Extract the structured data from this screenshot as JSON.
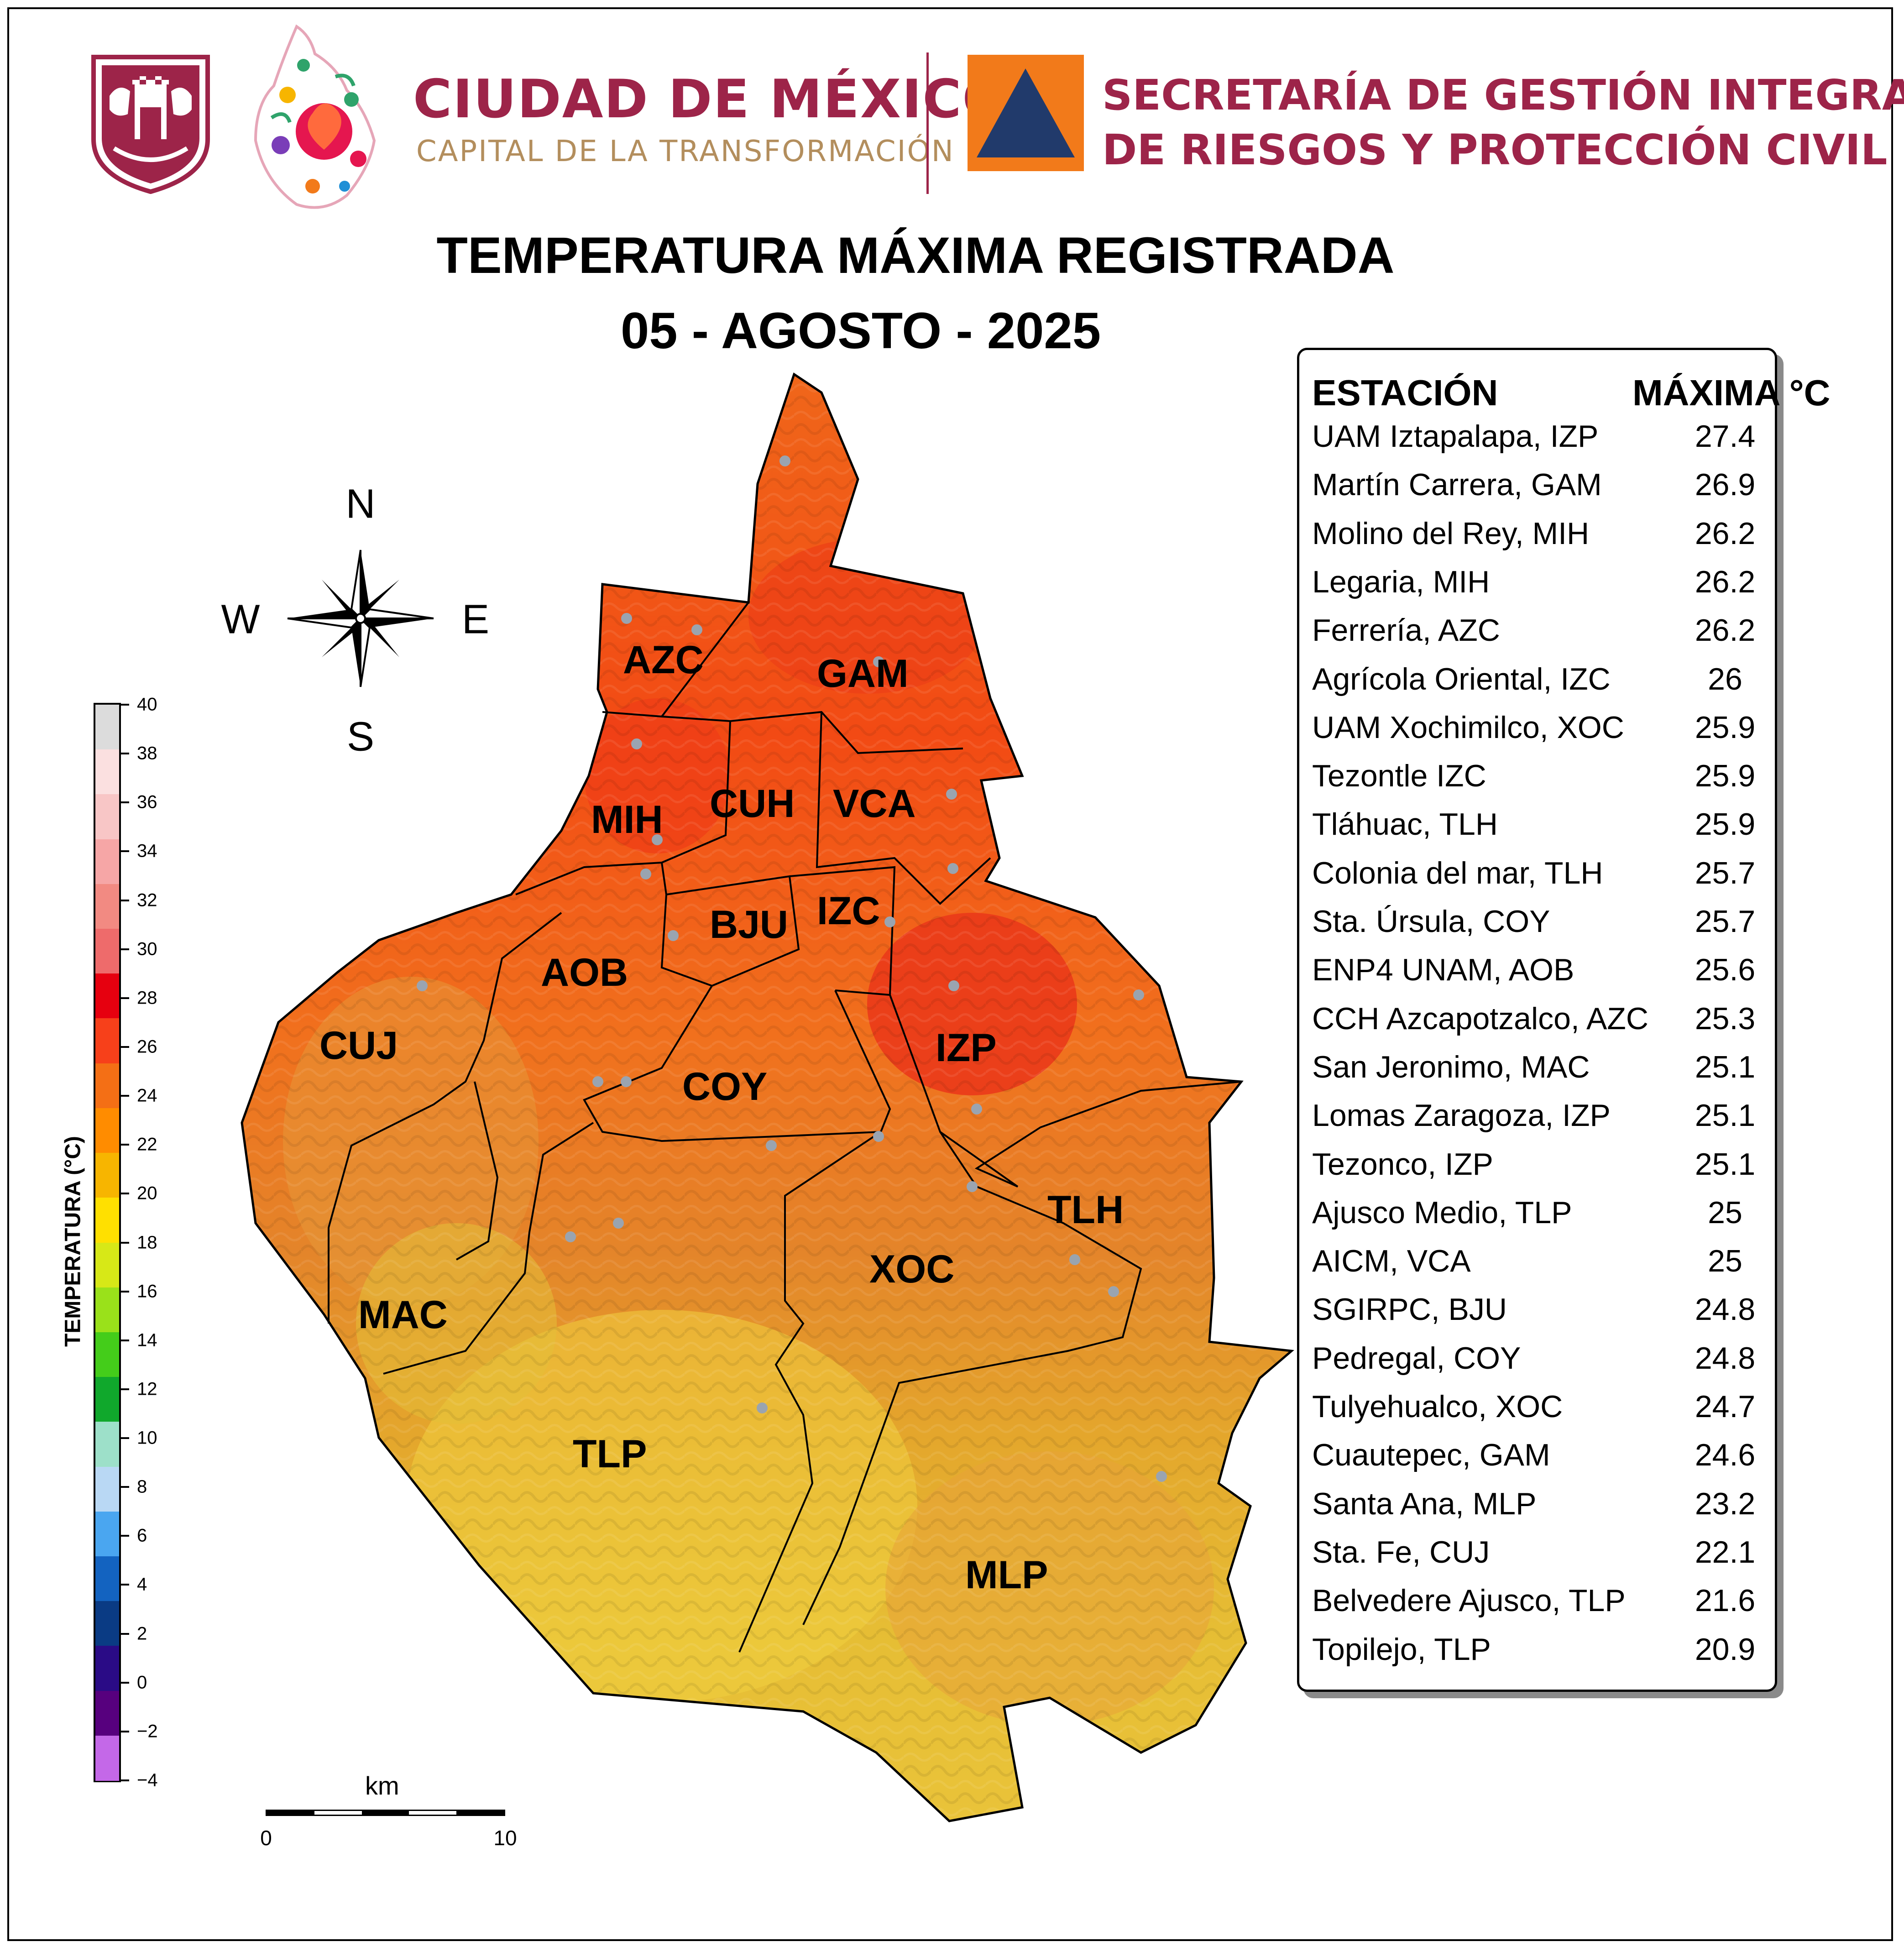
{
  "header": {
    "cdmx_name": "CIUDAD DE MÉXICO",
    "cdmx_slogan": "CAPITAL DE LA TRANSFORMACIÓN",
    "secretariat_line1": "SECRETARÍA DE GESTIÓN INTEGRAL",
    "secretariat_line2": "DE RIESGOS Y PROTECCIÓN CIVIL"
  },
  "title": {
    "line1": "TEMPERATURA MÁXIMA REGISTRADA",
    "line2": "05 - AGOSTO - 2025"
  },
  "compass": {
    "n": "N",
    "s": "S",
    "e": "E",
    "w": "W"
  },
  "colorbar": {
    "title": "TEMPERATURA (°C)",
    "ticks": [
      "40",
      "38",
      "36",
      "34",
      "32",
      "30",
      "28",
      "26",
      "24",
      "22",
      "20",
      "18",
      "16",
      "14",
      "12",
      "10",
      "8",
      "6",
      "4",
      "2",
      "0",
      "−2",
      "−4"
    ],
    "colors_top_to_bottom": [
      "#dcdcdc",
      "#fbe0e0",
      "#f8c6c6",
      "#f6a6a6",
      "#f28a82",
      "#ee6b6b",
      "#e6000f",
      "#f7401a",
      "#f46f15",
      "#ff8c00",
      "#f7b500",
      "#ffe000",
      "#d7e817",
      "#9ae11a",
      "#44cd1a",
      "#10a82c",
      "#9de0c9",
      "#b9d8f4",
      "#4aa6f0",
      "#1363c0",
      "#0a3b84",
      "#2a0b86",
      "#57007e",
      "#c468e8"
    ]
  },
  "scale": {
    "unit": "km",
    "min": "0",
    "max": "10"
  },
  "map": {
    "alcaldias": [
      "GAM",
      "AZC",
      "MIH",
      "CUH",
      "VCA",
      "BJU",
      "IZC",
      "AOB",
      "CUJ",
      "COY",
      "IZP",
      "TLH",
      "XOC",
      "MAC",
      "TLP",
      "MLP"
    ]
  },
  "table": {
    "header_station": "ESTACIÓN",
    "header_max": "MÁXIMA °C",
    "rows": [
      {
        "station": "UAM Iztapalapa, IZP",
        "value": "27.4"
      },
      {
        "station": "Martín Carrera, GAM",
        "value": "26.9"
      },
      {
        "station": "Molino del Rey, MIH",
        "value": "26.2"
      },
      {
        "station": "Legaria, MIH",
        "value": "26.2"
      },
      {
        "station": "Ferrería, AZC",
        "value": "26.2"
      },
      {
        "station": "Agrícola Oriental, IZC",
        "value": "26"
      },
      {
        "station": "UAM Xochimilco, XOC",
        "value": "25.9"
      },
      {
        "station": "Tezontle IZC",
        "value": "25.9"
      },
      {
        "station": "Tláhuac, TLH",
        "value": "25.9"
      },
      {
        "station": "Colonia del mar, TLH",
        "value": "25.7"
      },
      {
        "station": "Sta. Úrsula, COY",
        "value": "25.7"
      },
      {
        "station": "ENP4 UNAM,  AOB",
        "value": "25.6"
      },
      {
        "station": "CCH Azcapotzalco, AZC",
        "value": "25.3"
      },
      {
        "station": "San Jeronimo, MAC",
        "value": "25.1"
      },
      {
        "station": "Lomas Zaragoza, IZP",
        "value": "25.1"
      },
      {
        "station": "Tezonco, IZP",
        "value": "25.1"
      },
      {
        "station": "Ajusco Medio, TLP",
        "value": "25"
      },
      {
        "station": "AICM, VCA",
        "value": "25"
      },
      {
        "station": "SGIRPC, BJU",
        "value": "24.8"
      },
      {
        "station": "Pedregal, COY",
        "value": "24.8"
      },
      {
        "station": "Tulyehualco, XOC",
        "value": "24.7"
      },
      {
        "station": "Cuautepec, GAM",
        "value": "24.6"
      },
      {
        "station": "Santa Ana, MLP",
        "value": "23.2"
      },
      {
        "station": "Sta. Fe, CUJ",
        "value": "22.1"
      },
      {
        "station": "Belvedere Ajusco, TLP",
        "value": "21.6"
      },
      {
        "station": "Topilejo, TLP",
        "value": "20.9"
      }
    ]
  }
}
